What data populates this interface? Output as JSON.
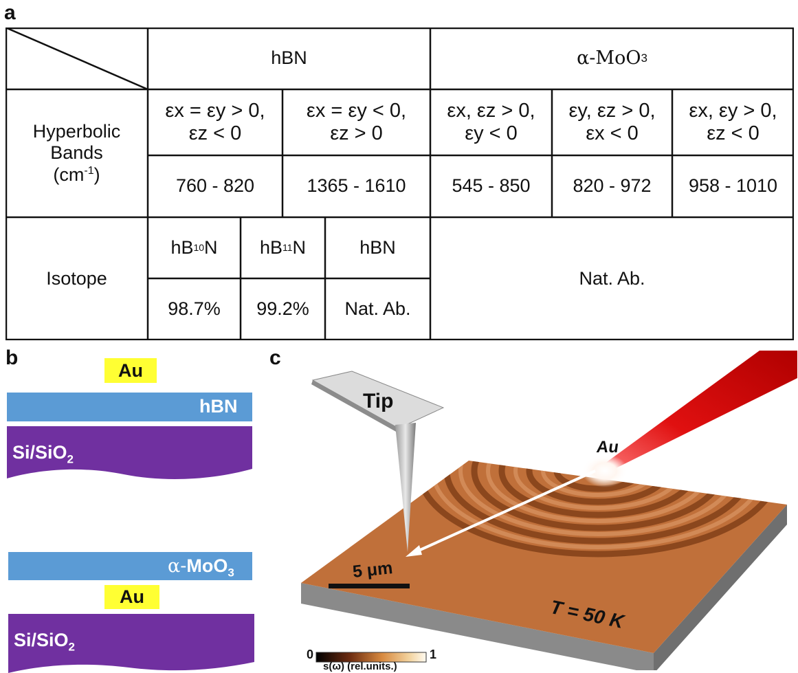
{
  "panel_a": {
    "label": "a",
    "col_hbn": "hBN",
    "col_moo3_prefix": "α-MoO",
    "col_moo3_sub": "3",
    "row_hyperbolic_line1": "Hyperbolic",
    "row_hyperbolic_line2": "Bands",
    "row_hyperbolic_line3_pre": "(cm",
    "row_hyperbolic_line3_sup": "-1",
    "row_hyperbolic_line3_post": ")",
    "bands": [
      {
        "line1": "εx = εy > 0,",
        "line2": "εz < 0",
        "range": "760 - 820"
      },
      {
        "line1": "εx = εy < 0,",
        "line2": "εz > 0",
        "range": "1365 - 1610"
      },
      {
        "line1": "εx, εz > 0,",
        "line2": "εy < 0",
        "range": "545 - 850"
      },
      {
        "line1": "εy, εz > 0,",
        "line2": "εx < 0",
        "range": "820 - 972"
      },
      {
        "line1": "εx, εy > 0,",
        "line2": "εz < 0",
        "range": "958 - 1010"
      }
    ],
    "row_isotope": "Isotope",
    "isotopes": [
      {
        "pre": "hB",
        "sup": "10",
        "post": "N",
        "value": "98.7%"
      },
      {
        "pre": "hB",
        "sup": "11",
        "post": "N",
        "value": "99.2%"
      },
      {
        "pre": "hBN",
        "sup": "",
        "post": "",
        "value": "Nat. Ab."
      }
    ],
    "moo3_isotope": "Nat. Ab."
  },
  "panel_b": {
    "label": "b",
    "top": {
      "au": "Au",
      "film": "hBN",
      "substrate": "Si/SiO",
      "substrate_sub": "2"
    },
    "bottom": {
      "film_prefix": "α-",
      "film": "MoO",
      "film_sub": "3",
      "au": "Au",
      "substrate": "Si/SiO",
      "substrate_sub": "2"
    },
    "colors": {
      "film": "#5b9bd5",
      "substrate": "#7030a0",
      "au": "#ffff33"
    }
  },
  "panel_c": {
    "label": "c",
    "tip": "Tip",
    "au": "Au",
    "scale_bar": "5 μm",
    "temperature": "T = 50 K",
    "colorbar_min": "0",
    "colorbar_max": "1",
    "colorbar_label": "s(ω) (rel.units.)",
    "colors": {
      "surface": "#c0703a",
      "laser": "#e01010"
    }
  }
}
